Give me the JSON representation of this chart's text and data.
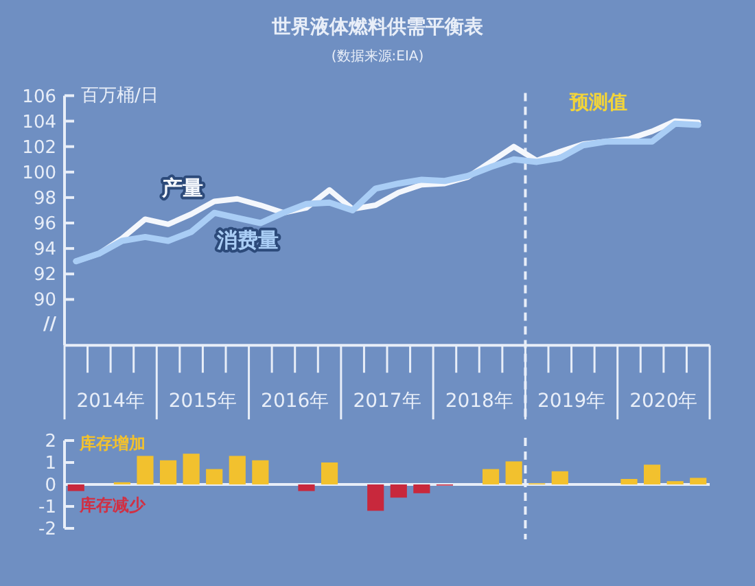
{
  "chart_data": [
    {
      "type": "line",
      "title": "世界液体燃料供需平衡表",
      "subtitle": "(数据来源:EIA)",
      "ylabel": "百万桶/日",
      "x": [
        2014.125,
        2014.375,
        2014.625,
        2014.875,
        2015.125,
        2015.375,
        2015.625,
        2015.875,
        2016.125,
        2016.375,
        2016.625,
        2016.875,
        2017.125,
        2017.375,
        2017.625,
        2017.875,
        2018.125,
        2018.375,
        2018.625,
        2018.875,
        2019.125,
        2019.375,
        2019.625,
        2019.875,
        2020.125,
        2020.375,
        2020.625,
        2020.875
      ],
      "series": [
        {
          "name": "产量",
          "color": "#f4f7fc",
          "values": [
            93.0,
            93.6,
            94.8,
            96.3,
            95.9,
            96.7,
            97.7,
            97.9,
            97.4,
            96.8,
            97.2,
            98.6,
            97.1,
            97.4,
            98.4,
            99.0,
            99.1,
            99.6,
            100.8,
            102.0,
            100.9,
            101.6,
            102.2,
            102.4,
            102.6,
            103.2,
            104.0,
            103.9
          ]
        },
        {
          "name": "消费量",
          "color": "#a9cdf5",
          "values": [
            93.0,
            93.6,
            94.6,
            94.9,
            94.6,
            95.3,
            96.8,
            96.4,
            96.0,
            96.8,
            97.5,
            97.6,
            97.0,
            98.7,
            99.1,
            99.4,
            99.3,
            99.7,
            100.4,
            101.0,
            100.8,
            101.1,
            102.1,
            102.4,
            102.4,
            102.4,
            103.8,
            103.7
          ]
        }
      ],
      "xlim": [
        2014,
        2021
      ],
      "xticks": [
        {
          "value": 2014.5,
          "label": "2014年"
        },
        {
          "value": 2015.5,
          "label": "2015年"
        },
        {
          "value": 2016.5,
          "label": "2016年"
        },
        {
          "value": 2017.5,
          "label": "2017年"
        },
        {
          "value": 2018.5,
          "label": "2018年"
        },
        {
          "value": 2019.5,
          "label": "2019年"
        },
        {
          "value": 2020.5,
          "label": "2020年"
        }
      ],
      "ylim": [
        86.4,
        106
      ],
      "yticks": [
        90,
        92,
        94,
        96,
        98,
        100,
        102,
        104,
        106
      ],
      "ref_lines": [
        {
          "axis": "x",
          "value": 2019,
          "line_style": "dashed",
          "color": "#e8eef8"
        }
      ],
      "annotations": [
        "预测值",
        "//"
      ],
      "line_style": "solid",
      "marker": "none",
      "grid": false
    },
    {
      "type": "bar",
      "x": [
        2014.125,
        2014.375,
        2014.625,
        2014.875,
        2015.125,
        2015.375,
        2015.625,
        2015.875,
        2016.125,
        2016.375,
        2016.625,
        2016.875,
        2017.125,
        2017.375,
        2017.625,
        2017.875,
        2018.125,
        2018.375,
        2018.625,
        2018.875,
        2019.125,
        2019.375,
        2019.625,
        2019.875,
        2020.125,
        2020.375,
        2020.625,
        2020.875
      ],
      "values": [
        -0.3,
        0,
        0.1,
        1.3,
        1.1,
        1.4,
        0.7,
        1.3,
        1.1,
        0,
        -0.3,
        1.0,
        0,
        -1.2,
        -0.6,
        -0.4,
        -0.05,
        0,
        0.7,
        1.05,
        0.05,
        0.6,
        0,
        0,
        0.25,
        0.9,
        0.15,
        0.3
      ],
      "colors": [
        "#c8283c",
        "#f2c12e",
        "#f2c12e",
        "#f2c12e",
        "#f2c12e",
        "#f2c12e",
        "#f2c12e",
        "#f2c12e",
        "#f2c12e",
        "#f2c12e",
        "#c8283c",
        "#f2c12e",
        "#f2c12e",
        "#c8283c",
        "#c8283c",
        "#c8283c",
        "#c8283c",
        "#f2c12e",
        "#f2c12e",
        "#f2c12e",
        "#f2c12e",
        "#f2c12e",
        "#f2c12e",
        "#f2c12e",
        "#f2c12e",
        "#f2c12e",
        "#f2c12e",
        "#f2c12e"
      ],
      "xlim": [
        2014,
        2021
      ],
      "ylim": [
        -2,
        2
      ],
      "yticks": [
        -2,
        -1,
        0,
        1,
        2
      ],
      "tick_labels": "y",
      "ref_lines": [
        {
          "axis": "x",
          "value": 2019,
          "line_style": "dashed",
          "color": "#e8eef8"
        }
      ],
      "annotations": [
        "库存增加",
        "库存减少"
      ]
    }
  ]
}
